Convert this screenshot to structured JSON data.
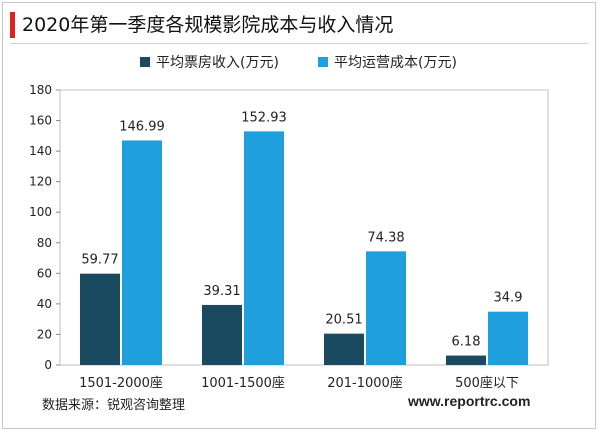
{
  "chart_data": {
    "type": "bar",
    "title": "2020年第一季度各规模影院成本与收入情况",
    "categories": [
      "1501-2000座",
      "1001-1500座",
      "201-1000座",
      "500座以下"
    ],
    "series": [
      {
        "name": "平均票房收入(万元)",
        "values": [
          59.77,
          39.31,
          20.51,
          6.18
        ],
        "labels": [
          "59.77",
          "39.31",
          "20.51",
          "6.18"
        ],
        "color": "#1a4a5f"
      },
      {
        "name": "平均运营成本(万元)",
        "values": [
          146.99,
          152.93,
          74.38,
          34.9
        ],
        "labels": [
          "146.99",
          "152.93",
          "74.38",
          "34.9"
        ],
        "color": "#1f9fdb"
      }
    ],
    "ylim": [
      0,
      180
    ],
    "yticks": [
      0,
      20,
      40,
      60,
      80,
      100,
      120,
      140,
      160,
      180
    ],
    "grid": false,
    "legend": "top"
  },
  "footer": {
    "source": "数据来源：锐观咨询整理",
    "website": "www.reportrc.com"
  },
  "colors": {
    "title_accent": "#d9251c"
  }
}
